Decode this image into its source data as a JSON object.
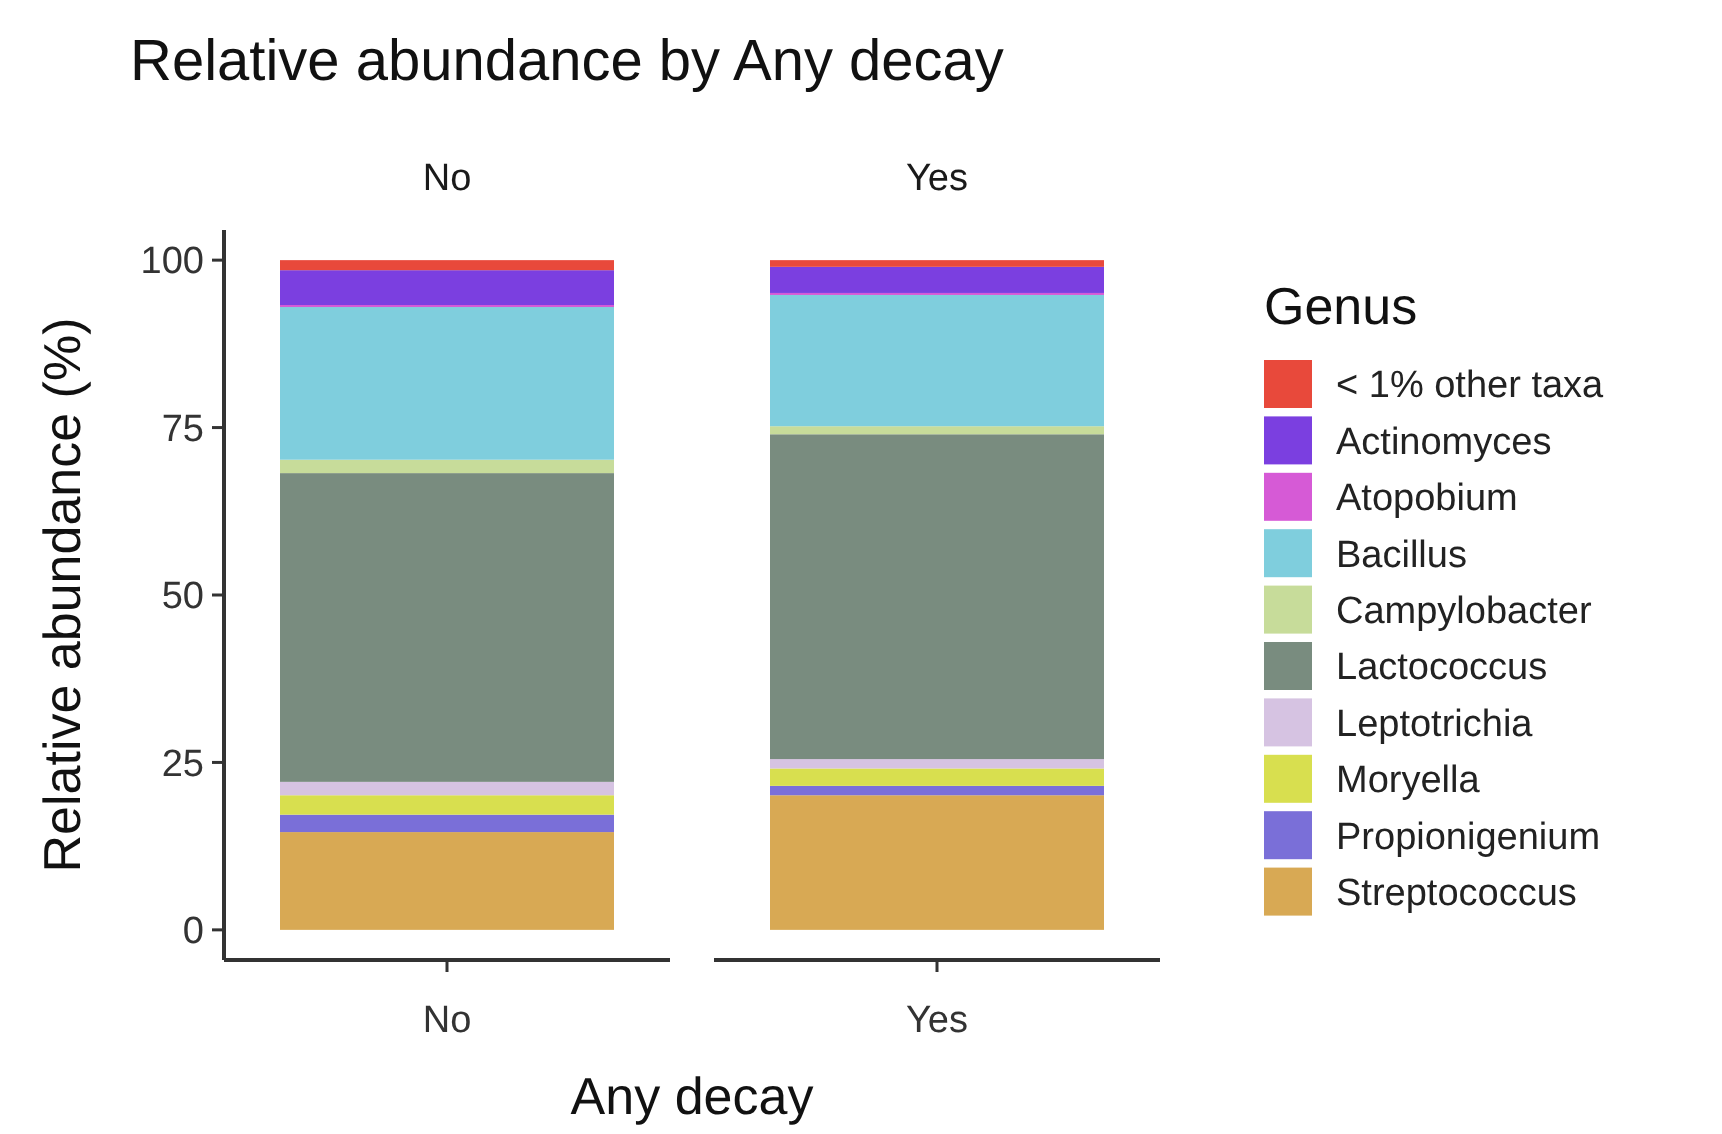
{
  "chart_data": {
    "type": "bar",
    "title": "Relative abundance by Any decay",
    "xlabel": "Any decay",
    "ylabel": "Relative abundance (%)",
    "legend_title": "Genus",
    "categories": [
      "No",
      "Yes"
    ],
    "stacked": true,
    "ylim": [
      -4.5,
      104.5
    ],
    "yticks": [
      0,
      25,
      50,
      75,
      100
    ],
    "grid": false,
    "legend": "right",
    "annotations": [
      {
        "text": "No",
        "x": "No"
      },
      {
        "text": "Yes",
        "x": "Yes"
      }
    ],
    "series": [
      {
        "name": "Streptococcus",
        "color": "#d8a954",
        "values": [
          14.6,
          20.1
        ]
      },
      {
        "name": "Propionigenium",
        "color": "#7a6fd8",
        "values": [
          2.6,
          1.4
        ]
      },
      {
        "name": "Moryella",
        "color": "#d8df4f",
        "values": [
          2.9,
          2.6
        ]
      },
      {
        "name": "Leptotrichia",
        "color": "#d6c3e2",
        "values": [
          2.0,
          1.4
        ]
      },
      {
        "name": "Lactococcus",
        "color": "#798c7f",
        "values": [
          46.1,
          48.5
        ]
      },
      {
        "name": "Campylobacter",
        "color": "#c7dc9a",
        "values": [
          2.0,
          1.2
        ]
      },
      {
        "name": "Bacillus",
        "color": "#7fcedd",
        "values": [
          22.8,
          19.6
        ]
      },
      {
        "name": "Atopobium",
        "color": "#d65ad6",
        "values": [
          0.3,
          0.3
        ]
      },
      {
        "name": "Actinomyces",
        "color": "#7b3fe0",
        "values": [
          5.2,
          3.9
        ]
      },
      {
        "name": "< 1% other taxa",
        "color": "#e8493b",
        "values": [
          1.5,
          1.0
        ]
      }
    ]
  }
}
